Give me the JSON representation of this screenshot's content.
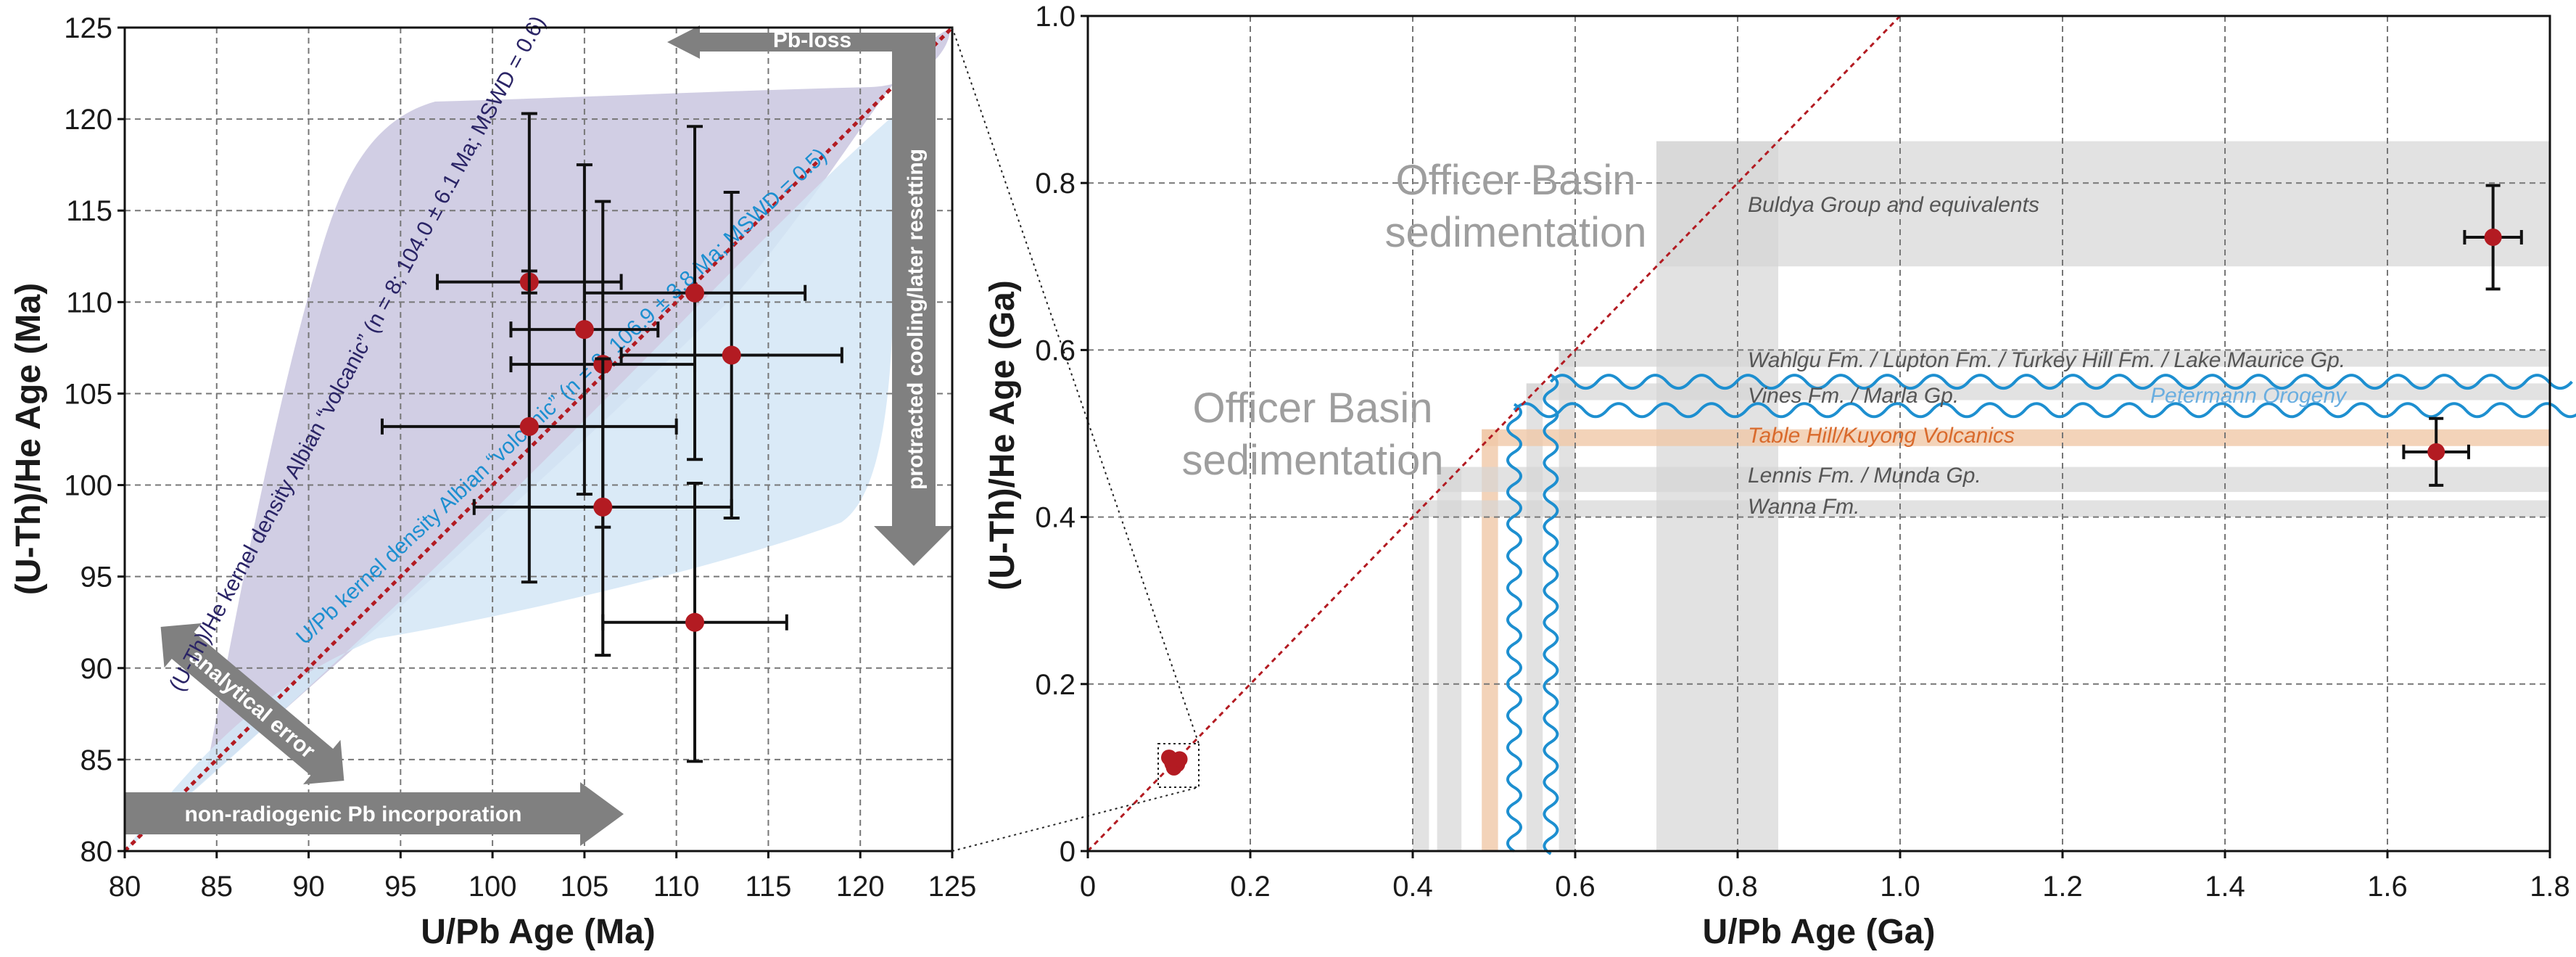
{
  "colors": {
    "point": "#b31b22",
    "error_bar": "#111111",
    "one_to_one": "#b31b22",
    "uthhe_kde_fill": "#b9b3d6",
    "upb_kde_fill": "#d3e6f6",
    "uthhe_kde_text": "#2a2466",
    "upb_kde_text": "#1d8fd0",
    "arrow": "#808080",
    "unit_band": "#d6d6d6",
    "volcanic_band": "#f0c8a8",
    "orogeny": "#1d8fd0",
    "volcanic_text": "#d96a2c",
    "orogeny_text": "#6aaee0"
  },
  "chart_data": [
    {
      "type": "scatter",
      "xlabel": "U/Pb Age (Ma)",
      "ylabel": "(U-Th)/He Age (Ma)",
      "xlim": [
        80,
        125
      ],
      "ylim": [
        80,
        125
      ],
      "xticks": [
        "80",
        "85",
        "90",
        "95",
        "100",
        "105",
        "110",
        "115",
        "120",
        "125"
      ],
      "yticks": [
        "80",
        "85",
        "90",
        "95",
        "100",
        "105",
        "110",
        "115",
        "120",
        "125"
      ],
      "grid": true,
      "reference_line": "1:1",
      "points": [
        {
          "x": 102.0,
          "y": 111.1,
          "xerr": 5.0,
          "yerr": [
            0.6,
            9.2
          ]
        },
        {
          "x": 105.0,
          "y": 108.5,
          "xerr": 4.0,
          "yerr": 9.0
        },
        {
          "x": 106.0,
          "y": 106.6,
          "xerr": 5.0,
          "yerr": 8.9
        },
        {
          "x": 111.0,
          "y": 110.5,
          "xerr": 6.0,
          "yerr": 9.1
        },
        {
          "x": 113.0,
          "y": 107.1,
          "xerr": 6.0,
          "yerr": 8.9
        },
        {
          "x": 102.0,
          "y": 103.2,
          "xerr": 8.0,
          "yerr": 8.5
        },
        {
          "x": 106.0,
          "y": 98.8,
          "xerr": 7.0,
          "yerr": 8.1
        },
        {
          "x": 111.0,
          "y": 92.5,
          "xerr": 5.0,
          "yerr": 7.6
        }
      ],
      "kde_labels": {
        "uthhe": "(U-Th)/He kernel density Albian “volcanic” (n = 8; 104.0 ± 6.1 Ma; MSWD = 0.6)",
        "upb": "U/Pb kernel density Albian “volcanic” (n = 8; 106.9 ± 3.8 Ma; MSWD = 0.5)"
      },
      "arrows": {
        "pb_loss": "Pb-loss",
        "cooling": "protracted cooling/later resetting",
        "analytical": "analytical error",
        "nonradiogenic": "non-radiogenic Pb incorporation"
      }
    },
    {
      "type": "scatter",
      "xlabel": "U/Pb Age (Ga)",
      "ylabel": "(U-Th)/He Age (Ga)",
      "xlim": [
        0,
        1.8
      ],
      "ylim": [
        0,
        1.0
      ],
      "xticks": [
        "0",
        "0.2",
        "0.4",
        "0.6",
        "0.8",
        "1.0",
        "1.2",
        "1.4",
        "1.6",
        "1.8"
      ],
      "yticks": [
        "0",
        "0.2",
        "0.4",
        "0.6",
        "0.8",
        "1.0"
      ],
      "grid": true,
      "reference_line": "1:1",
      "points": [
        {
          "x": 1.73,
          "y": 0.735,
          "xerr": 0.035,
          "yerr": 0.062
        },
        {
          "x": 1.66,
          "y": 0.478,
          "xerr": 0.04,
          "yerr": 0.04
        },
        {
          "x": 0.105,
          "y": 0.105,
          "xerr": 0,
          "yerr": 0
        }
      ],
      "units": [
        {
          "label": "Buldya Group and equivalents",
          "y": [
            0.7,
            0.85
          ],
          "x": [
            0.7,
            0.85
          ],
          "kind": "unit"
        },
        {
          "label": "Wahlgu Fm. / Lupton Fm. / Turkey Hill Fm. / Lake Maurice Gp.",
          "y": [
            0.58,
            0.6
          ],
          "x": [
            0.58,
            0.6
          ],
          "kind": "unit"
        },
        {
          "label": "Vines Fm. / Marla Gp.",
          "y": [
            0.54,
            0.56
          ],
          "x": [
            0.54,
            0.56
          ],
          "kind": "unit"
        },
        {
          "label": "Table Hill/Kuyong Volcanics",
          "y": [
            0.485,
            0.505
          ],
          "x": [
            0.485,
            0.505
          ],
          "kind": "volcanic"
        },
        {
          "label": "Lennis Fm. / Munda Gp.",
          "y": [
            0.43,
            0.46
          ],
          "x": [
            0.43,
            0.46
          ],
          "kind": "unit"
        },
        {
          "label": "Wanna Fm.",
          "y": [
            0.4,
            0.42
          ],
          "x": [
            0.4,
            0.42
          ],
          "kind": "unit"
        }
      ],
      "orogeny": "Petermann Orogeny",
      "sedimentation": [
        "Officer Basin",
        "sedimentation"
      ]
    }
  ]
}
